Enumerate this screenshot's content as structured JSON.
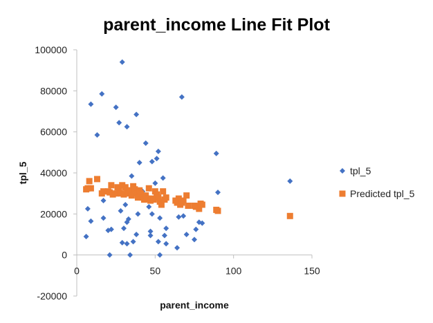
{
  "chart_data": {
    "type": "scatter",
    "title": "parent_income Line Fit  Plot",
    "xlabel": "parent_income",
    "ylabel": "tpl_5",
    "xlim": [
      0,
      150
    ],
    "ylim": [
      -20000,
      100000
    ],
    "x_ticks": [
      0,
      50,
      100,
      150
    ],
    "y_ticks": [
      -20000,
      0,
      20000,
      40000,
      60000,
      80000,
      100000
    ],
    "grid": false,
    "legend_position": "right",
    "series": [
      {
        "name": "tpl_5",
        "color": "#4472C4",
        "marker": "diamond",
        "points": [
          [
            6,
            9000
          ],
          [
            7,
            22500
          ],
          [
            9,
            73500
          ],
          [
            9,
            16500
          ],
          [
            13,
            58500
          ],
          [
            16,
            78500
          ],
          [
            17,
            18000
          ],
          [
            17,
            26500
          ],
          [
            20,
            12000
          ],
          [
            21,
            0
          ],
          [
            22,
            12500
          ],
          [
            25,
            72000
          ],
          [
            27,
            64500
          ],
          [
            28,
            21500
          ],
          [
            29,
            94000
          ],
          [
            29,
            6000
          ],
          [
            30,
            13000
          ],
          [
            31,
            24500
          ],
          [
            32,
            62500
          ],
          [
            32,
            16000
          ],
          [
            32,
            5500
          ],
          [
            33,
            17500
          ],
          [
            34,
            0
          ],
          [
            35,
            38500
          ],
          [
            36,
            6500
          ],
          [
            38,
            68500
          ],
          [
            38,
            10000
          ],
          [
            39,
            20000
          ],
          [
            40,
            45000
          ],
          [
            42,
            31000
          ],
          [
            44,
            54500
          ],
          [
            46,
            23500
          ],
          [
            47,
            9500
          ],
          [
            47,
            11500
          ],
          [
            48,
            45500
          ],
          [
            48,
            20000
          ],
          [
            50,
            30000
          ],
          [
            50,
            35000
          ],
          [
            51,
            47000
          ],
          [
            52,
            50500
          ],
          [
            52,
            6500
          ],
          [
            53,
            18000
          ],
          [
            53,
            0
          ],
          [
            55,
            37500
          ],
          [
            55,
            27000
          ],
          [
            56,
            9500
          ],
          [
            57,
            13000
          ],
          [
            57,
            5500
          ],
          [
            64,
            3500
          ],
          [
            65,
            18500
          ],
          [
            67,
            77000
          ],
          [
            68,
            19000
          ],
          [
            70,
            10000
          ],
          [
            75,
            7500
          ],
          [
            76,
            12500
          ],
          [
            78,
            16000
          ],
          [
            80,
            15500
          ],
          [
            89,
            49500
          ],
          [
            90,
            30500
          ],
          [
            136,
            36000
          ]
        ]
      },
      {
        "name": "Predicted tpl_5",
        "color": "#ED7D31",
        "marker": "square",
        "points": [
          [
            6,
            32000
          ],
          [
            7,
            32500
          ],
          [
            8,
            36000
          ],
          [
            9,
            32500
          ],
          [
            13,
            37000
          ],
          [
            16,
            30000
          ],
          [
            17,
            31000
          ],
          [
            20,
            31000
          ],
          [
            21,
            30500
          ],
          [
            22,
            34000
          ],
          [
            23,
            29500
          ],
          [
            25,
            30000
          ],
          [
            26,
            33000
          ],
          [
            27,
            32000
          ],
          [
            28,
            30000
          ],
          [
            29,
            34000
          ],
          [
            30,
            29500
          ],
          [
            31,
            33000
          ],
          [
            32,
            31500
          ],
          [
            33,
            30000
          ],
          [
            34,
            31500
          ],
          [
            35,
            29000
          ],
          [
            36,
            33500
          ],
          [
            37,
            32000
          ],
          [
            38,
            30000
          ],
          [
            39,
            28000
          ],
          [
            40,
            31500
          ],
          [
            41,
            30000
          ],
          [
            42,
            28000
          ],
          [
            43,
            27000
          ],
          [
            44,
            29000
          ],
          [
            45,
            27500
          ],
          [
            46,
            32500
          ],
          [
            47,
            26500
          ],
          [
            48,
            27500
          ],
          [
            49,
            27000
          ],
          [
            50,
            31000
          ],
          [
            51,
            29500
          ],
          [
            52,
            28000
          ],
          [
            53,
            26000
          ],
          [
            54,
            24500
          ],
          [
            55,
            31000
          ],
          [
            56,
            27000
          ],
          [
            57,
            28000
          ],
          [
            63,
            26500
          ],
          [
            64,
            25500
          ],
          [
            65,
            27500
          ],
          [
            66,
            24500
          ],
          [
            67,
            25500
          ],
          [
            68,
            26500
          ],
          [
            70,
            29000
          ],
          [
            71,
            24000
          ],
          [
            75,
            24000
          ],
          [
            76,
            23500
          ],
          [
            78,
            22500
          ],
          [
            79,
            25000
          ],
          [
            80,
            24500
          ],
          [
            89,
            22000
          ],
          [
            90,
            21500
          ],
          [
            136,
            19000
          ]
        ]
      }
    ]
  }
}
